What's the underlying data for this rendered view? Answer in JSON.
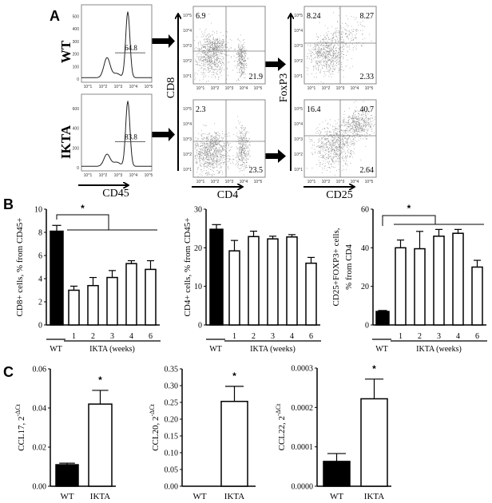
{
  "panel_labels": {
    "a": "A",
    "b": "B",
    "c": "C"
  },
  "panel_a": {
    "row_labels": [
      "WT",
      "IKTA"
    ],
    "histogram": {
      "xlabel": "CD45",
      "x_ticks": [
        "10^1",
        "10^2",
        "10^3",
        "10^4",
        "10^5"
      ],
      "wt": {
        "y_ticks": [
          "0",
          "100",
          "200",
          "300",
          "400",
          "500"
        ],
        "gate_percent": "64.8"
      },
      "ikta": {
        "y_ticks": [
          "0",
          "200",
          "400",
          "600"
        ],
        "gate_percent": "83.8"
      }
    },
    "cd8_cd4": {
      "xlabel": "CD4",
      "ylabel": "CD8",
      "ticks": [
        "10^1",
        "10^2",
        "10^3",
        "10^4",
        "10^5"
      ],
      "wt": {
        "upper_left": "6.9",
        "lower_right": "21.9"
      },
      "ikta": {
        "upper_left": "2.3",
        "lower_right": "23.5"
      }
    },
    "foxp3_cd25": {
      "xlabel": "CD25",
      "ylabel": "FoxP3",
      "ticks": [
        "10^1",
        "10^2",
        "10^3",
        "10^4",
        "10^5"
      ],
      "wt": {
        "upper_left": "8.24",
        "upper_right": "8.27",
        "lower_right": "2.33"
      },
      "ikta": {
        "upper_left": "16.4",
        "upper_right": "40.7",
        "lower_right": "2.64"
      }
    }
  },
  "chart_data": [
    {
      "type": "bar",
      "panel": "B",
      "ylabel": "CD8+ cells, % from CD45+",
      "categories": [
        "WT",
        "1",
        "2",
        "3",
        "4",
        "6"
      ],
      "group_labels": [
        "WT",
        "IKTA (weeks)"
      ],
      "values": [
        8.1,
        3.0,
        3.4,
        4.1,
        5.3,
        4.8
      ],
      "errors": [
        0.5,
        0.35,
        0.7,
        0.6,
        0.25,
        0.75
      ],
      "fill": [
        "#000000",
        "#ffffff",
        "#ffffff",
        "#ffffff",
        "#ffffff",
        "#ffffff"
      ],
      "ylim": [
        0,
        10
      ],
      "yticks": [
        0,
        2,
        4,
        6,
        8,
        10
      ],
      "significance": "*"
    },
    {
      "type": "bar",
      "panel": "B",
      "ylabel": "CD4+ cells, % from CD45+",
      "categories": [
        "WT",
        "1",
        "2",
        "3",
        "4",
        "6"
      ],
      "group_labels": [
        "WT",
        "IKTA (weeks)"
      ],
      "values": [
        24.8,
        19.2,
        22.9,
        22.3,
        22.8,
        16.0
      ],
      "errors": [
        1.2,
        2.7,
        1.4,
        0.7,
        0.6,
        1.5
      ],
      "fill": [
        "#000000",
        "#ffffff",
        "#ffffff",
        "#ffffff",
        "#ffffff",
        "#ffffff"
      ],
      "ylim": [
        0,
        30
      ],
      "yticks": [
        0,
        10,
        20,
        30
      ],
      "significance": ""
    },
    {
      "type": "bar",
      "panel": "B",
      "ylabel": "CD25+FOXP3+ cells,",
      "ylabel2": "% from CD4",
      "categories": [
        "WT",
        "1",
        "2",
        "3",
        "4",
        "6"
      ],
      "group_labels": [
        "WT",
        "IKTA (weeks)"
      ],
      "values": [
        7.0,
        40.0,
        39.5,
        46.0,
        47.5,
        30.0
      ],
      "errors": [
        0.5,
        4.0,
        9.0,
        3.5,
        2.0,
        3.5
      ],
      "fill": [
        "#000000",
        "#ffffff",
        "#ffffff",
        "#ffffff",
        "#ffffff",
        "#ffffff"
      ],
      "ylim": [
        0,
        60
      ],
      "yticks": [
        0,
        20,
        40,
        60
      ],
      "significance": "*"
    },
    {
      "type": "bar",
      "panel": "C",
      "ylabel": "CCL17, 2",
      "ylabel_sup": "-ΔCt",
      "categories": [
        "WT",
        "IKTA"
      ],
      "values": [
        0.011,
        0.042
      ],
      "errors": [
        0.0008,
        0.007
      ],
      "fill": [
        "#000000",
        "#ffffff"
      ],
      "ylim": [
        0,
        0.06
      ],
      "yticks": [
        "0.00",
        "0.02",
        "0.04",
        "0.06"
      ],
      "significance": "*"
    },
    {
      "type": "bar",
      "panel": "C",
      "ylabel": "CCL20, 2",
      "ylabel_sup": "-ΔCt",
      "categories": [
        "WT",
        "IKTA"
      ],
      "values": [
        0,
        0.253
      ],
      "errors": [
        0,
        0.045
      ],
      "fill": [
        "#000000",
        "#ffffff"
      ],
      "ylim": [
        0,
        0.35
      ],
      "yticks": [
        "0.00",
        "0.05",
        "0.10",
        "0.15",
        "0.20",
        "0.25",
        "0.30",
        "0.35"
      ],
      "significance": "*"
    },
    {
      "type": "bar",
      "panel": "C",
      "ylabel": "CCL22, 2",
      "ylabel_sup": "-ΔCt",
      "categories": [
        "WT",
        "IKTA"
      ],
      "values": [
        6.3e-05,
        0.000222
      ],
      "errors": [
        2e-05,
        5e-05
      ],
      "fill": [
        "#000000",
        "#ffffff"
      ],
      "ylim": [
        0,
        0.0003
      ],
      "yticks": [
        "0.0000",
        "0.0001",
        "0.0002",
        "0.0003"
      ],
      "significance": "*"
    }
  ]
}
